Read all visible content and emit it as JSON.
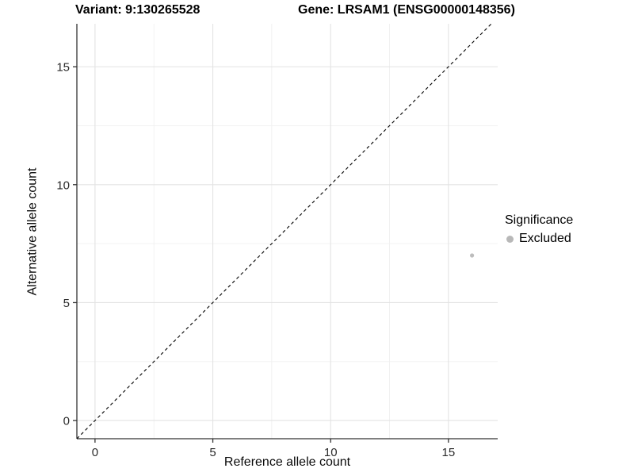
{
  "header": {
    "variant_title": "Variant: 9:130265528",
    "gene_title": "Gene: LRSAM1 (ENSG00000148356)"
  },
  "chart_data": {
    "type": "scatter",
    "title": "Variant: 9:130265528    Gene: LRSAM1 (ENSG00000148356)",
    "xlabel": "Reference allele count",
    "ylabel": "Alternative allele count",
    "xlim": [
      -0.77,
      17.09
    ],
    "ylim": [
      -0.77,
      16.82
    ],
    "x_ticks": [
      0,
      5,
      10,
      15
    ],
    "y_ticks": [
      0,
      5,
      10,
      15
    ],
    "x_minor_ticks": [
      2.5,
      7.5,
      12.5
    ],
    "y_minor_ticks": [
      2.5,
      7.5,
      12.5
    ],
    "grid": true,
    "series": [
      {
        "name": "Excluded",
        "color": "#bdbdbd",
        "points": [
          {
            "x": 16,
            "y": 7
          }
        ]
      }
    ],
    "reference_line": {
      "kind": "identity",
      "equation": "y = x",
      "style": "dashed",
      "color": "#000000"
    },
    "legend": {
      "title": "Significance",
      "position": "right",
      "items": [
        "Excluded"
      ]
    },
    "style": {
      "background": "#ffffff",
      "grid_major_color": "#e3e3e3",
      "grid_minor_color": "#f0f0f0",
      "axis_line_color": "#333333",
      "tick_text_color": "#2b2b2b",
      "point_radius": 2.6,
      "legend_point_color": "#b8b8b8"
    }
  }
}
